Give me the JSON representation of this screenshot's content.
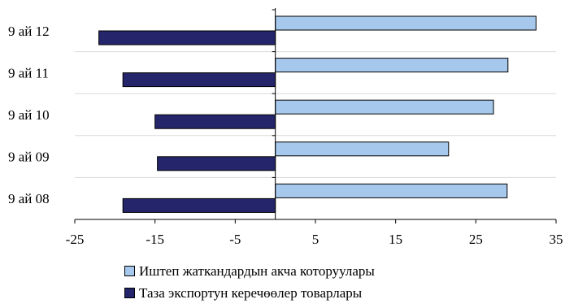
{
  "chart_data": {
    "type": "bar",
    "orientation": "horizontal",
    "title": "",
    "xlabel": "",
    "ylabel": "",
    "categories": [
      "9 ай 12",
      "9 ай 11",
      "9 ай 10",
      "9 ай 09",
      "9 ай 08"
    ],
    "series": [
      {
        "name": "Иштеп жаткандардын акча которуулары",
        "color": "#a6c8ec",
        "values": [
          32.5,
          29.0,
          27.2,
          21.6,
          28.9
        ]
      },
      {
        "name": "Таза экспортун керечөөлер товарлары",
        "color": "#24256a",
        "values": [
          -22.0,
          -19.0,
          -15.0,
          -14.7,
          -19.0
        ]
      }
    ],
    "xlim": [
      -25,
      35
    ],
    "xticks": [
      -25,
      -15,
      -5,
      5,
      15,
      25,
      35
    ],
    "grid": "horizontal",
    "legend_position": "bottom"
  }
}
